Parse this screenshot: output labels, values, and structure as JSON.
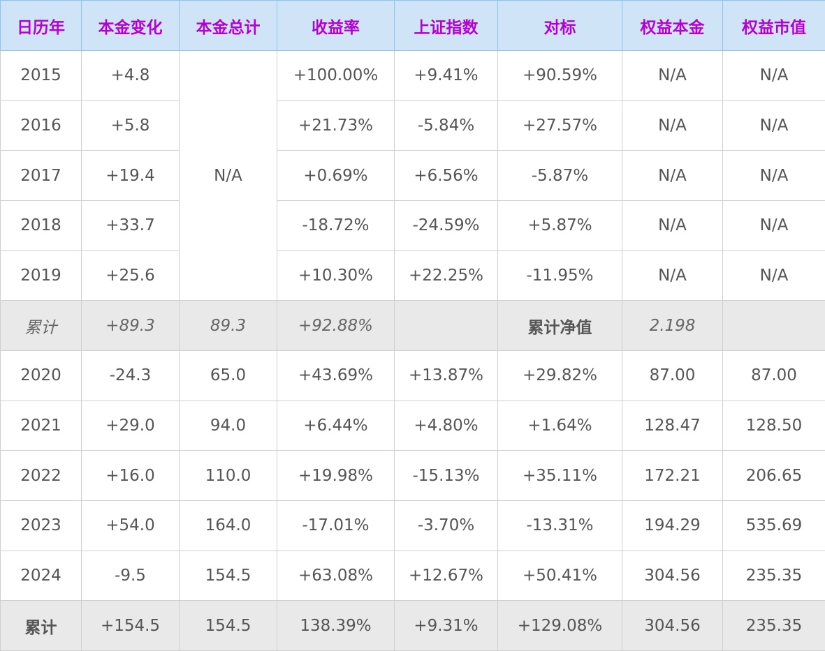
{
  "table": {
    "header": [
      "日历年",
      "本金变化",
      "本金总计",
      "收益率",
      "上证指数",
      "对标",
      "权益本金",
      "权益市值"
    ],
    "rows": [
      [
        "2015",
        "+4.8",
        "N/A",
        "+100.00%",
        "+9.41%",
        "+90.59%",
        "N/A",
        "N/A"
      ],
      [
        "2016",
        "+5.8",
        null,
        "+21.73%",
        "-5.84%",
        "+27.57%",
        "N/A",
        "N/A"
      ],
      [
        "2017",
        "+19.4",
        null,
        "+0.69%",
        "+6.56%",
        "-5.87%",
        "N/A",
        "N/A"
      ],
      [
        "2018",
        "+33.7",
        null,
        "-18.72%",
        "-24.59%",
        "+5.87%",
        "N/A",
        "N/A"
      ],
      [
        "2019",
        "+25.6",
        null,
        "+10.30%",
        "+22.25%",
        "-11.95%",
        "N/A",
        "N/A"
      ],
      [
        "累计",
        "+89.3",
        "89.3",
        "+92.88%",
        null,
        "累计净值",
        "2.198",
        null
      ],
      [
        "2020",
        "-24.3",
        "65.0",
        "+43.69%",
        "+13.87%",
        "+29.82%",
        "87.00",
        "87.00"
      ],
      [
        "2021",
        "+29.0",
        "94.0",
        "+6.44%",
        "+4.80%",
        "+1.64%",
        "128.47",
        "128.50"
      ],
      [
        "2022",
        "+16.0",
        "110.0",
        "+19.98%",
        "-15.13%",
        "+35.11%",
        "172.21",
        "206.65"
      ],
      [
        "2023",
        "+54.0",
        "164.0",
        "-17.01%",
        "-3.70%",
        "-13.31%",
        "194.29",
        "535.69"
      ],
      [
        "2024",
        "-9.5",
        "154.5",
        "+63.08%",
        "+12.67%",
        "+50.41%",
        "304.56",
        "235.35"
      ],
      [
        "累计",
        "+154.5",
        "154.5",
        "138.39%",
        "+9.31%",
        "+129.08%",
        "304.56",
        "235.35"
      ]
    ]
  }
}
